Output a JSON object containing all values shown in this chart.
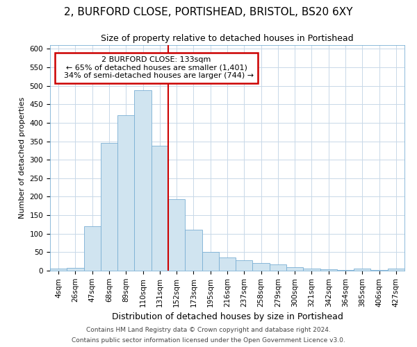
{
  "title_line1": "2, BURFORD CLOSE, PORTISHEAD, BRISTOL, BS20 6XY",
  "title_line2": "Size of property relative to detached houses in Portishead",
  "xlabel": "Distribution of detached houses by size in Portishead",
  "ylabel": "Number of detached properties",
  "categories": [
    "4sqm",
    "26sqm",
    "47sqm",
    "68sqm",
    "89sqm",
    "110sqm",
    "131sqm",
    "152sqm",
    "173sqm",
    "195sqm",
    "216sqm",
    "237sqm",
    "258sqm",
    "279sqm",
    "300sqm",
    "321sqm",
    "342sqm",
    "364sqm",
    "385sqm",
    "406sqm",
    "427sqm"
  ],
  "values": [
    5,
    7,
    120,
    345,
    420,
    488,
    338,
    193,
    111,
    50,
    35,
    28,
    20,
    17,
    10,
    5,
    3,
    2,
    5,
    2,
    5
  ],
  "bar_color": "#d0e4f0",
  "bar_edge_color": "#7aafd4",
  "vline_x_index": 6.5,
  "vline_color": "#cc0000",
  "ylim": [
    0,
    610
  ],
  "yticks": [
    0,
    50,
    100,
    150,
    200,
    250,
    300,
    350,
    400,
    450,
    500,
    550,
    600
  ],
  "property_label": "2 BURFORD CLOSE: 133sqm",
  "pct_smaller": 65,
  "n_smaller": 1401,
  "pct_larger_semi": 34,
  "n_larger_semi": 744,
  "annotation_box_color": "#ffffff",
  "annotation_box_edge": "#cc0000",
  "footer_line1": "Contains HM Land Registry data © Crown copyright and database right 2024.",
  "footer_line2": "Contains public sector information licensed under the Open Government Licence v3.0.",
  "background_color": "#ffffff",
  "grid_color": "#c8d8e8",
  "title1_fontsize": 11,
  "title2_fontsize": 9,
  "ylabel_fontsize": 8,
  "xlabel_fontsize": 9,
  "tick_fontsize": 7.5,
  "annot_fontsize": 8,
  "footer_fontsize": 6.5
}
